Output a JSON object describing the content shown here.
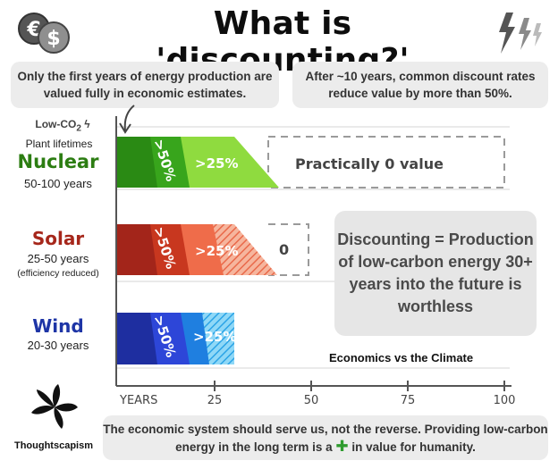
{
  "title": "What is 'discounting?'",
  "notes": {
    "left": "Only the first years of energy production are valued fully in economic estimates.",
    "right": "After ~10 years, common discount rates reduce value by more than 50%."
  },
  "legend": {
    "low_co2": "Low-CO",
    "low_co2_sub": "2",
    "plant_lifetimes": "Plant lifetimes"
  },
  "technologies": [
    {
      "name": "Nuclear",
      "years": "50-100 years",
      "note": "",
      "color": "#2c7d12"
    },
    {
      "name": "Solar",
      "years": "25-50 years",
      "note": "(efficiency reduced)",
      "color": "#a6271b"
    },
    {
      "name": "Wind",
      "years": "20-30 years",
      "note": "",
      "color": "#1e35a6"
    }
  ],
  "bar_labels": {
    "first": ">50%",
    "second": ">25%",
    "nuclear_rest": "Practically 0 value",
    "solar_rest": "0"
  },
  "callout": "Discounting = Production of low-carbon energy 30+ years into the future is worthless",
  "chart_title": "Economics vs the Climate",
  "axis": {
    "label": "YEARS",
    "ticks": [
      "25",
      "50",
      "75",
      "100"
    ]
  },
  "chart_data": {
    "type": "bar",
    "categories": [
      "Nuclear",
      "Solar",
      "Wind"
    ],
    "xlabel": "YEARS",
    "xlim": [
      0,
      100
    ],
    "series": [
      {
        "name": ">50%",
        "values": [
          15,
          15,
          15
        ]
      },
      {
        "name": ">25%",
        "values": [
          25,
          25,
          25
        ]
      },
      {
        "name": "0",
        "values": [
          100,
          50,
          30
        ]
      }
    ]
  },
  "bottom_text_1": "The economic system should serve us, not the reverse. Providing low-carbon energy in the long term is a",
  "bottom_plus": "✚",
  "bottom_text_2": "in value for humanity.",
  "brand": "Thoughtscapism",
  "icons": [
    "euro-coin-icon",
    "dollar-coin-icon",
    "lightning-icon",
    "flower-logo-icon"
  ]
}
